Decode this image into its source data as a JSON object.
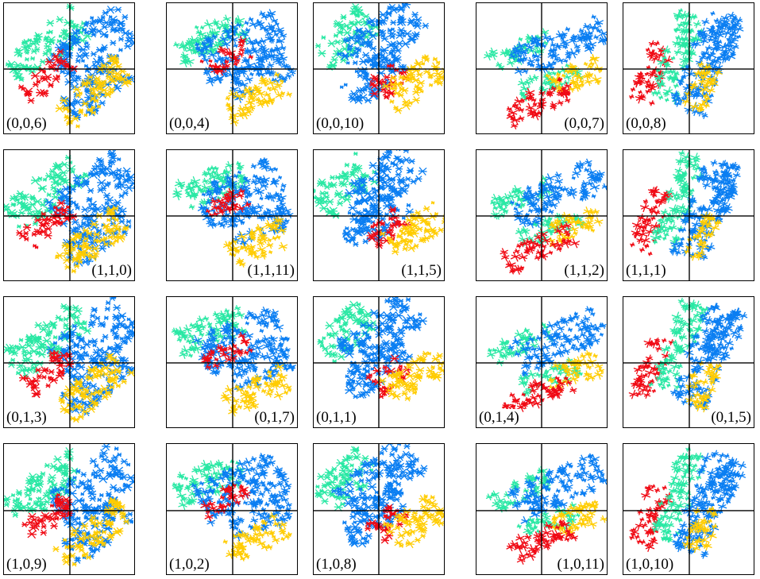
{
  "colors": {
    "red": "#f00a14",
    "teal": "#29e8a4",
    "blue": "#0a7ef2",
    "yellow": "#ffcc00"
  },
  "panels": [
    {
      "id": "p-0-0-6",
      "label": "(0,0,6)",
      "label_corner": "bottom-left",
      "pattern": 0
    },
    {
      "id": "p-0-0-4",
      "label": "(0,0,4)",
      "label_corner": "bottom-left",
      "pattern": 1
    },
    {
      "id": "p-0-0-10",
      "label": "(0,0,10)",
      "label_corner": "bottom-left",
      "pattern": 2
    },
    {
      "id": "p-0-0-7",
      "label": "(0,0,7)",
      "label_corner": "bottom-right",
      "pattern": 3
    },
    {
      "id": "p-0-0-8",
      "label": "(0,0,8)",
      "label_corner": "bottom-left",
      "pattern": 4
    },
    {
      "id": "p-1-1-0",
      "label": "(1,1,0)",
      "label_corner": "bottom-right",
      "pattern": 0
    },
    {
      "id": "p-1-1-11",
      "label": "(1,1,11)",
      "label_corner": "bottom-right",
      "pattern": 1
    },
    {
      "id": "p-1-1-5",
      "label": "(1,1,5)",
      "label_corner": "bottom-right",
      "pattern": 2
    },
    {
      "id": "p-1-1-2",
      "label": "(1,1,2)",
      "label_corner": "bottom-right",
      "pattern": 3
    },
    {
      "id": "p-1-1-1",
      "label": "(1,1,1)",
      "label_corner": "bottom-left",
      "pattern": 4
    },
    {
      "id": "p-0-1-3",
      "label": "(0,1,3)",
      "label_corner": "bottom-left",
      "pattern": 0
    },
    {
      "id": "p-0-1-7",
      "label": "(0,1,7)",
      "label_corner": "bottom-right",
      "pattern": 1
    },
    {
      "id": "p-0-1-1",
      "label": "(0,1,1)",
      "label_corner": "bottom-left",
      "pattern": 2
    },
    {
      "id": "p-0-1-4",
      "label": "(0,1,4)",
      "label_corner": "bottom-left",
      "pattern": 3
    },
    {
      "id": "p-0-1-5",
      "label": "(0,1,5)",
      "label_corner": "bottom-right",
      "pattern": 4
    },
    {
      "id": "p-1-0-9",
      "label": "(1,0,9)",
      "label_corner": "bottom-left",
      "pattern": 0
    },
    {
      "id": "p-1-0-2",
      "label": "(1,0,2)",
      "label_corner": "bottom-left",
      "pattern": 1
    },
    {
      "id": "p-1-0-8",
      "label": "(1,0,8)",
      "label_corner": "bottom-left",
      "pattern": 2
    },
    {
      "id": "p-1-0-11",
      "label": "(1,0,11)",
      "label_corner": "bottom-right",
      "pattern": 3
    },
    {
      "id": "p-1-0-10",
      "label": "(1,0,10)",
      "label_corner": "bottom-left",
      "pattern": 4
    }
  ]
}
